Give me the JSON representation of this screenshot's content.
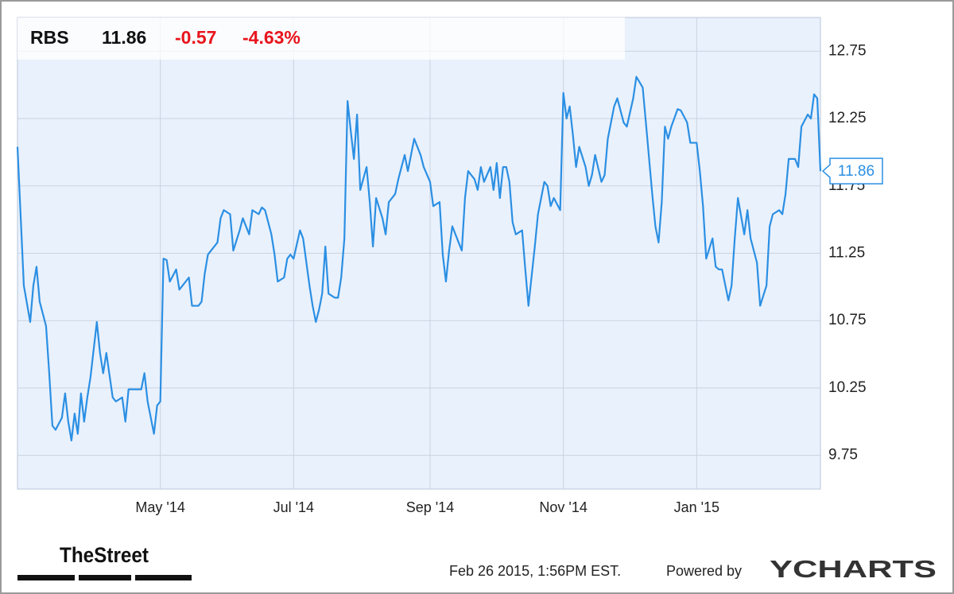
{
  "chart_data": {
    "type": "line",
    "ticker": "RBS",
    "price": 11.86,
    "change": -0.57,
    "pct_change": "-4.63%",
    "color": "#2b8fe3",
    "grid": true,
    "xlim": [
      0,
      253
    ],
    "xticks": [
      {
        "value": 45,
        "label": "May '14"
      },
      {
        "value": 87,
        "label": "Jul '14"
      },
      {
        "value": 130,
        "label": "Sep '14"
      },
      {
        "value": 172,
        "label": "Nov '14"
      },
      {
        "value": 214,
        "label": "Jan '15"
      }
    ],
    "ylim": [
      9.5,
      13.0
    ],
    "yticks": [
      9.75,
      10.25,
      10.75,
      11.25,
      11.75,
      12.25,
      12.75
    ],
    "series": [
      {
        "color": "#2b8fe3",
        "x": [
          0,
          2,
          4,
          5,
          6,
          7,
          9,
          10,
          11,
          12,
          14,
          15,
          16,
          17,
          18,
          19,
          20,
          21,
          22,
          23,
          25,
          26,
          27,
          28,
          30,
          31,
          33,
          34,
          35,
          37,
          39,
          40,
          41,
          43,
          44,
          45,
          46,
          47,
          48,
          50,
          51,
          52,
          54,
          55,
          57,
          58,
          59,
          60,
          61,
          63,
          64,
          65,
          67,
          68,
          70,
          71,
          73,
          74,
          76,
          77,
          78,
          80,
          81,
          82,
          84,
          85,
          86,
          87,
          89,
          90,
          92,
          93,
          94,
          95,
          96,
          97,
          98,
          100,
          101,
          102,
          103,
          104,
          105,
          106,
          107,
          108,
          110,
          111,
          112,
          113,
          115,
          116,
          117,
          119,
          120,
          122,
          123,
          125,
          126,
          127,
          128,
          130,
          131,
          133,
          134,
          135,
          136,
          137,
          139,
          140,
          141,
          142,
          144,
          145,
          146,
          147,
          149,
          150,
          151,
          152,
          153,
          154,
          155,
          156,
          157,
          159,
          160,
          161,
          163,
          164,
          166,
          167,
          168,
          169,
          171,
          172,
          173,
          174,
          175,
          176,
          177,
          179,
          180,
          181,
          182,
          184,
          185,
          186,
          188,
          189,
          191,
          192,
          194,
          195,
          197,
          198,
          200,
          201,
          202,
          203,
          204,
          205,
          206,
          208,
          209,
          211,
          212,
          214,
          215,
          216,
          217,
          219,
          220,
          221,
          222,
          224,
          225,
          226,
          227,
          229,
          230,
          231,
          233,
          234,
          236,
          237,
          238,
          240,
          241,
          242,
          243,
          245,
          246,
          247,
          249,
          250,
          251,
          252,
          253
        ],
        "values": [
          12.04,
          11.01,
          10.74,
          11.01,
          11.15,
          10.89,
          10.71,
          10.36,
          9.97,
          9.94,
          10.03,
          10.21,
          10.0,
          9.86,
          10.06,
          9.91,
          10.21,
          10.0,
          10.18,
          10.33,
          10.74,
          10.51,
          10.36,
          10.51,
          10.18,
          10.15,
          10.18,
          10.0,
          10.24,
          10.24,
          10.24,
          10.36,
          10.15,
          9.91,
          10.12,
          10.15,
          11.21,
          11.2,
          11.04,
          11.13,
          10.98,
          11.01,
          11.07,
          10.86,
          10.86,
          10.89,
          11.1,
          11.24,
          11.27,
          11.33,
          11.51,
          11.57,
          11.54,
          11.27,
          11.42,
          11.51,
          11.39,
          11.57,
          11.54,
          11.59,
          11.57,
          11.39,
          11.24,
          11.04,
          11.07,
          11.21,
          11.24,
          11.21,
          11.42,
          11.36,
          11.01,
          10.86,
          10.74,
          10.83,
          10.95,
          11.3,
          10.95,
          10.92,
          10.92,
          11.07,
          11.36,
          12.38,
          12.16,
          11.95,
          12.28,
          11.72,
          11.89,
          11.63,
          11.3,
          11.66,
          11.51,
          11.39,
          11.63,
          11.69,
          11.8,
          11.98,
          11.86,
          12.1,
          12.04,
          11.98,
          11.89,
          11.78,
          11.6,
          11.63,
          11.24,
          11.04,
          11.27,
          11.45,
          11.33,
          11.27,
          11.66,
          11.86,
          11.8,
          11.72,
          11.89,
          11.78,
          11.89,
          11.72,
          11.92,
          11.66,
          11.89,
          11.89,
          11.78,
          11.48,
          11.39,
          11.42,
          11.13,
          10.86,
          11.3,
          11.54,
          11.78,
          11.75,
          11.6,
          11.66,
          11.57,
          12.44,
          12.25,
          12.34,
          12.13,
          11.89,
          12.04,
          11.89,
          11.75,
          11.83,
          11.98,
          11.78,
          11.83,
          12.1,
          12.34,
          12.4,
          12.22,
          12.19,
          12.4,
          12.56,
          12.48,
          12.22,
          11.69,
          11.45,
          11.33,
          11.63,
          12.19,
          12.1,
          12.19,
          12.32,
          12.31,
          12.22,
          12.07,
          12.07,
          11.86,
          11.6,
          11.21,
          11.36,
          11.15,
          11.13,
          11.13,
          10.9,
          11.01,
          11.36,
          11.66,
          11.39,
          11.57,
          11.36,
          11.18,
          10.86,
          11.01,
          11.45,
          11.54,
          11.57,
          11.54,
          11.69,
          11.95,
          11.95,
          11.89,
          12.19,
          12.28,
          12.25,
          12.43,
          12.4,
          11.86
        ]
      }
    ]
  },
  "footer": {
    "brand": "TheStreet",
    "timestamp": "Feb 26 2015, 1:56PM EST.",
    "powered_by": "Powered by",
    "provider": "YCHARTS"
  }
}
